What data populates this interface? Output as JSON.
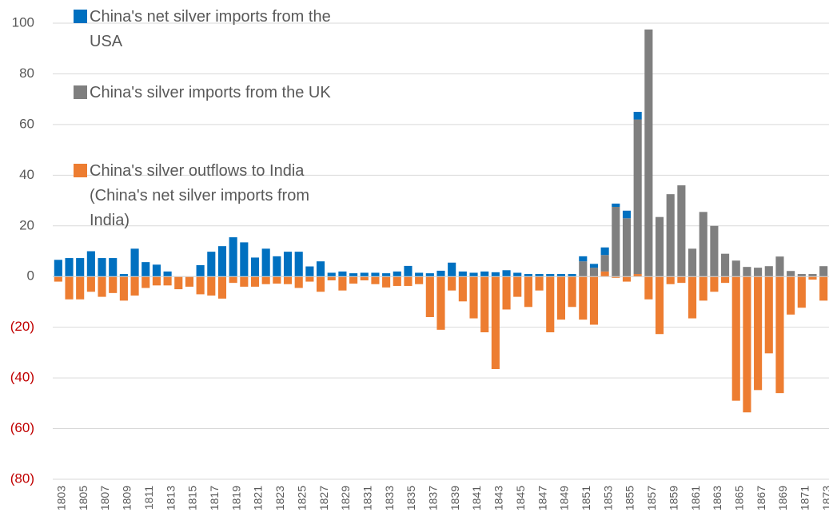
{
  "chart_data": {
    "type": "stacked_bar",
    "categories": [
      "1803",
      null,
      "1805",
      null,
      "1807",
      null,
      "1809",
      null,
      "1811",
      null,
      "1813",
      null,
      "1815",
      null,
      "1817",
      null,
      "1819",
      null,
      "1821",
      null,
      "1823",
      null,
      "1825",
      null,
      "1827",
      null,
      "1829",
      null,
      "1831",
      null,
      "1833",
      null,
      "1835",
      null,
      "1837",
      null,
      "1839",
      null,
      "1841",
      null,
      "1843",
      null,
      "1845",
      null,
      "1847",
      null,
      "1849",
      null,
      "1851",
      null,
      "1853",
      null,
      "1855",
      null,
      "1857",
      null,
      "1859",
      null,
      "1861",
      null,
      "1863",
      null,
      "1865",
      null,
      "1867",
      null,
      "1869",
      null,
      "1871",
      null,
      "1873"
    ],
    "series": [
      {
        "name": "China's net silver imports from the USA",
        "color": "#0070c0",
        "values": [
          6.6,
          7.3,
          7.3,
          10,
          7.3,
          7.3,
          1,
          11,
          5.7,
          4.7,
          2,
          0,
          0,
          4.5,
          9.8,
          12,
          15.5,
          13.5,
          7.5,
          11,
          8,
          9.8,
          9.8,
          4,
          6,
          1.5,
          2,
          1.3,
          1.5,
          1.5,
          1.3,
          2,
          4.2,
          1.5,
          1.3,
          2.3,
          5.5,
          2,
          1.5,
          2,
          1.7,
          2.5,
          1.5,
          1,
          1,
          1,
          1,
          1,
          2,
          1.5,
          3,
          1.3,
          3,
          3,
          0,
          0,
          0,
          0,
          0,
          0,
          0,
          0,
          0,
          0,
          0,
          0,
          0,
          0,
          0,
          0,
          0
        ]
      },
      {
        "name": "China's silver imports from the UK",
        "color": "#7f7f7f",
        "values": [
          0,
          0,
          0,
          0,
          0,
          0,
          0,
          0,
          0,
          0,
          0,
          0,
          0,
          0,
          0,
          0,
          0,
          0,
          0,
          0,
          0,
          0,
          0,
          0,
          0,
          0,
          0,
          0,
          0,
          0,
          0,
          0,
          0,
          0,
          0,
          0,
          0,
          0,
          0,
          0,
          0,
          0,
          0,
          0,
          0,
          0,
          0,
          0,
          6,
          3.5,
          6.5,
          27.5,
          23,
          61,
          97.5,
          23.5,
          32.5,
          36,
          11,
          25.5,
          20,
          9,
          6.3,
          3.8,
          3.5,
          4.1,
          7.9,
          2.2,
          1,
          1,
          4.1
        ]
      },
      {
        "name": "China's silver outflows to India (China's net silver imports from India)",
        "color": "#ed7d31",
        "values": [
          -2,
          -9,
          -9,
          -6,
          -8,
          -6.5,
          -9.5,
          -7.5,
          -4.5,
          -3.5,
          -3.5,
          -5,
          -4,
          -7,
          -7.5,
          -8.7,
          -2.5,
          -4,
          -4,
          -3,
          -2.8,
          -3,
          -4.5,
          -2,
          -6,
          -1.5,
          -5.5,
          -2.8,
          -1.5,
          -3,
          -4.3,
          -3.7,
          -3.7,
          -3,
          -16,
          -21,
          -5.5,
          -9.8,
          -16.5,
          -22,
          -36.5,
          -13,
          -8,
          -12,
          -5.5,
          -22,
          -17,
          -12,
          -17,
          -19,
          2,
          -0.5,
          -2,
          1,
          -9,
          -22.7,
          -3,
          -2.5,
          -16.5,
          -9.5,
          -6,
          -2.5,
          -49,
          -53.6,
          -44.8,
          -30.3,
          -46,
          -15,
          -12.3,
          -1.2,
          -9.5
        ]
      }
    ],
    "stack_order": [
      2,
      1,
      0
    ],
    "ylim": [
      -80,
      100
    ],
    "yticks": [
      {
        "value": -80,
        "label": "(80)"
      },
      {
        "value": -60,
        "label": "(60)"
      },
      {
        "value": -40,
        "label": "(40)"
      },
      {
        "value": -20,
        "label": "(20)"
      },
      0,
      20,
      40,
      60,
      80,
      100
    ],
    "negative_tick_color": "#c00000",
    "tick_color": "#595959",
    "grid": true,
    "legend": "top-left"
  }
}
